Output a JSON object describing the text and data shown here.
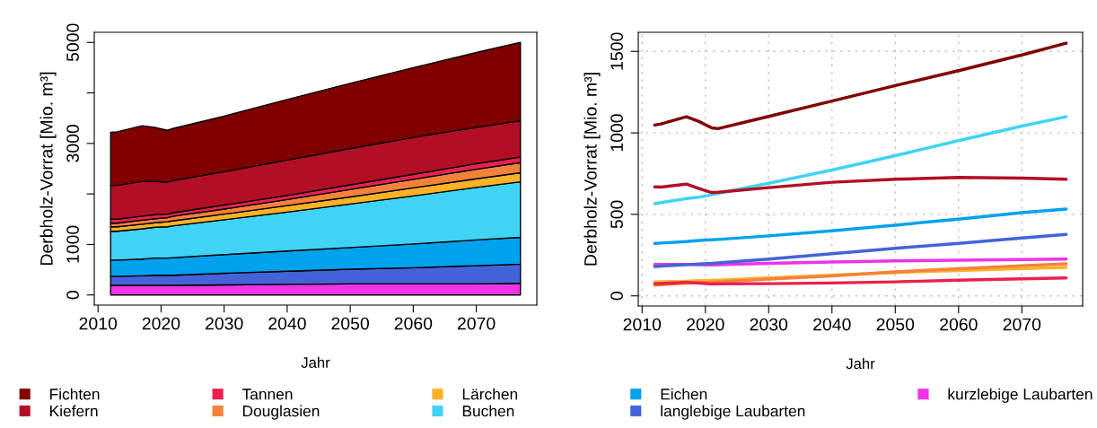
{
  "chart_data": [
    {
      "type": "area",
      "stacked": true,
      "ylabel": "Derbholz-Vorrat [Mio. m³]",
      "xlabel": "Jahr",
      "x": [
        2012,
        2013,
        2017,
        2019,
        2021,
        2022,
        2030,
        2040,
        2050,
        2060,
        2070,
        2077
      ],
      "xlim": [
        2009.4,
        2079.6
      ],
      "xticks": [
        2010,
        2020,
        2030,
        2040,
        2050,
        2060,
        2070
      ],
      "ylim": [
        -200,
        5200
      ],
      "yticks": [
        0,
        1000,
        {
          "value": 2000,
          "label": null
        },
        3000,
        {
          "value": 4000,
          "label": null
        },
        5000
      ],
      "grid": false,
      "legend": "bottom",
      "series": [
        {
          "name": "kurzlebige Laubarten",
          "color": "#ee33e8",
          "values": [
            190,
            190,
            190,
            190,
            190,
            190,
            200,
            210,
            220,
            220,
            220,
            230
          ]
        },
        {
          "name": "langlebige Laubarten",
          "color": "#4463d8",
          "values": [
            180,
            180,
            190,
            200,
            200,
            200,
            230,
            260,
            290,
            320,
            360,
            380
          ]
        },
        {
          "name": "Eichen",
          "color": "#00a2ee",
          "values": [
            320,
            320,
            330,
            340,
            340,
            350,
            370,
            400,
            430,
            470,
            510,
            530
          ]
        },
        {
          "name": "Buchen",
          "color": "#40d3f5",
          "values": [
            570,
            570,
            600,
            610,
            620,
            630,
            690,
            770,
            860,
            950,
            1040,
            1100
          ]
        },
        {
          "name": "Lärchen",
          "color": "#fbb226",
          "values": [
            90,
            90,
            90,
            90,
            100,
            100,
            110,
            130,
            140,
            160,
            170,
            180
          ]
        },
        {
          "name": "Douglasien",
          "color": "#f4823a",
          "values": [
            70,
            70,
            80,
            80,
            80,
            90,
            100,
            120,
            150,
            170,
            190,
            200
          ]
        },
        {
          "name": "Tannen",
          "color": "#e8214f",
          "values": [
            80,
            80,
            80,
            80,
            70,
            70,
            80,
            80,
            90,
            100,
            110,
            110
          ]
        },
        {
          "name": "Kiefern",
          "color": "#b20f25",
          "values": [
            670,
            670,
            690,
            660,
            630,
            640,
            660,
            700,
            720,
            730,
            720,
            720
          ]
        },
        {
          "name": "Fichten",
          "color": "#800000",
          "values": [
            1050,
            1060,
            1100,
            1070,
            1030,
            1030,
            1100,
            1200,
            1290,
            1380,
            1480,
            1550
          ]
        }
      ]
    },
    {
      "type": "line",
      "ylabel": "Derbholz-Vorrat [Mio. m³]",
      "xlabel": "Jahr",
      "x": [
        2012,
        2013,
        2017,
        2019,
        2021,
        2022,
        2030,
        2040,
        2050,
        2060,
        2070,
        2077
      ],
      "xlim": [
        2009.4,
        2079.6
      ],
      "xticks": [
        2010,
        2020,
        2030,
        2040,
        2050,
        2060,
        2070
      ],
      "ylim": [
        -62,
        1617
      ],
      "yticks": [
        0,
        500,
        1000,
        1500
      ],
      "grid": true,
      "marker": "none",
      "line_style": "solid",
      "series": [
        {
          "color": "#ee33e8",
          "values": [
            193,
            193,
            192,
            191,
            190,
            191,
            200,
            208,
            215,
            219,
            223,
            226
          ]
        },
        {
          "color": "#4463d8",
          "values": [
            180,
            183,
            192,
            195,
            199,
            202,
            226,
            259,
            292,
            322,
            355,
            377
          ]
        },
        {
          "color": "#00a2ee",
          "values": [
            322,
            324,
            333,
            340,
            344,
            346,
            368,
            399,
            434,
            471,
            511,
            533
          ]
        },
        {
          "color": "#40d3f5",
          "values": [
            566,
            572,
            597,
            606,
            620,
            629,
            691,
            772,
            860,
            952,
            1042,
            1099
          ]
        },
        {
          "color": "#fbb226",
          "values": [
            86,
            87,
            90,
            93,
            95,
            96,
            110,
            127,
            143,
            156,
            168,
            175
          ]
        },
        {
          "color": "#f4823a",
          "values": [
            66,
            68,
            78,
            81,
            84,
            86,
            103,
            123,
            147,
            167,
            185,
            197
          ]
        },
        {
          "color": "#e8214f",
          "values": [
            75,
            76,
            83,
            78,
            73,
            74,
            75,
            79,
            86,
            96,
            105,
            110
          ]
        },
        {
          "color": "#b20f25",
          "values": [
            669,
            667,
            686,
            658,
            634,
            636,
            664,
            697,
            715,
            726,
            722,
            715
          ]
        },
        {
          "color": "#800000",
          "values": [
            1048,
            1055,
            1099,
            1070,
            1031,
            1026,
            1101,
            1195,
            1290,
            1382,
            1478,
            1550
          ]
        }
      ]
    }
  ]
}
